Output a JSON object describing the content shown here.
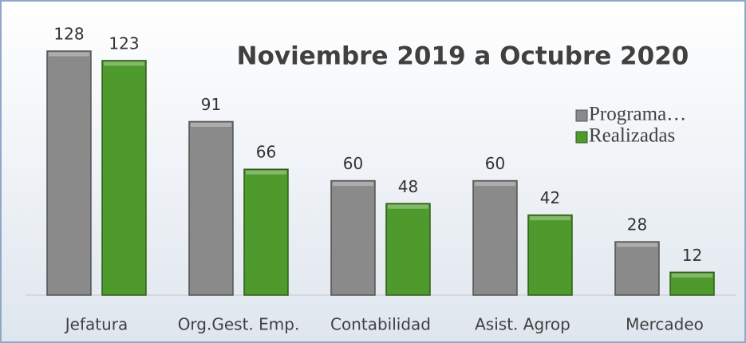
{
  "chart_data": {
    "type": "bar",
    "title": "Noviembre 2019 a Octubre 2020",
    "categories": [
      "Jefatura",
      "Org.Gest. Emp.",
      "Contabilidad",
      "Asist. Agrop",
      "Mercadeo"
    ],
    "series": [
      {
        "name": "Programa…",
        "color": "#8a8a8a",
        "values": [
          128,
          91,
          60,
          60,
          28
        ]
      },
      {
        "name": "Realizadas",
        "color": "#4f9a2c",
        "values": [
          123,
          66,
          48,
          42,
          12
        ]
      }
    ],
    "legend": "right"
  }
}
